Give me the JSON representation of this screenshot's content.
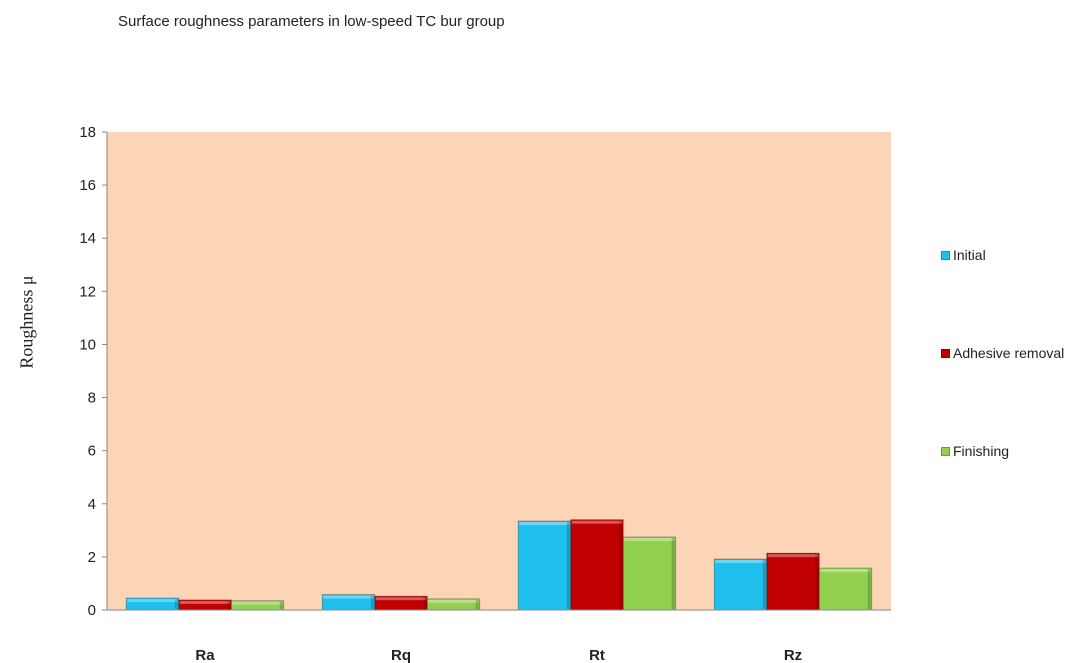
{
  "chart_data": {
    "type": "bar",
    "title": "Surface roughness parameters in low-speed TC bur group",
    "xlabel": "",
    "ylabel": "Roughness μ",
    "categories": [
      "Ra",
      "Rq",
      "Rt",
      "Rz"
    ],
    "series": [
      {
        "name": "Initial",
        "color": "#1fc0ee",
        "values": [
          0.45,
          0.58,
          3.35,
          1.92
        ]
      },
      {
        "name": "Adhesive removal",
        "color": "#c00000",
        "values": [
          0.38,
          0.52,
          3.4,
          2.14
        ]
      },
      {
        "name": "Finishing",
        "color": "#92d050",
        "values": [
          0.35,
          0.42,
          2.75,
          1.58
        ]
      }
    ],
    "ylim": [
      0,
      18
    ],
    "yticks": [
      0,
      2,
      4,
      6,
      8,
      10,
      12,
      14,
      16,
      18
    ],
    "plot_background": "#fbd5b5",
    "grid": false,
    "legend_position": "right"
  }
}
